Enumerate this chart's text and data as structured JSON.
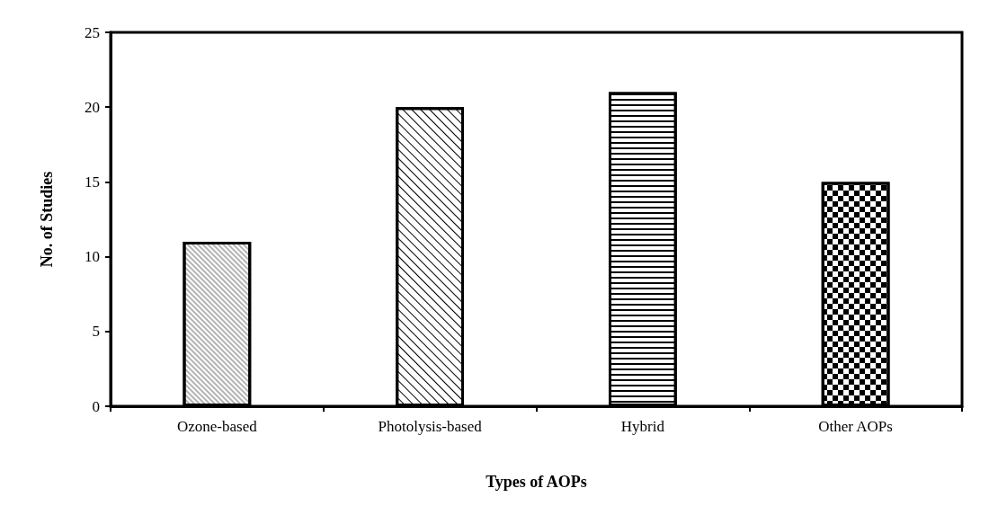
{
  "chart_data": {
    "type": "bar",
    "xlabel": "Types of AOPs",
    "ylabel": "No. of Studies",
    "categories": [
      "Ozone-based",
      "Photolysis-based",
      "Hybrid",
      "Other AOPs"
    ],
    "values": [
      11,
      20,
      21,
      15
    ],
    "color": "#000000",
    "ylim": [
      0,
      25
    ],
    "yticks": [
      0,
      5,
      10,
      15,
      20,
      25
    ],
    "grid": false
  }
}
